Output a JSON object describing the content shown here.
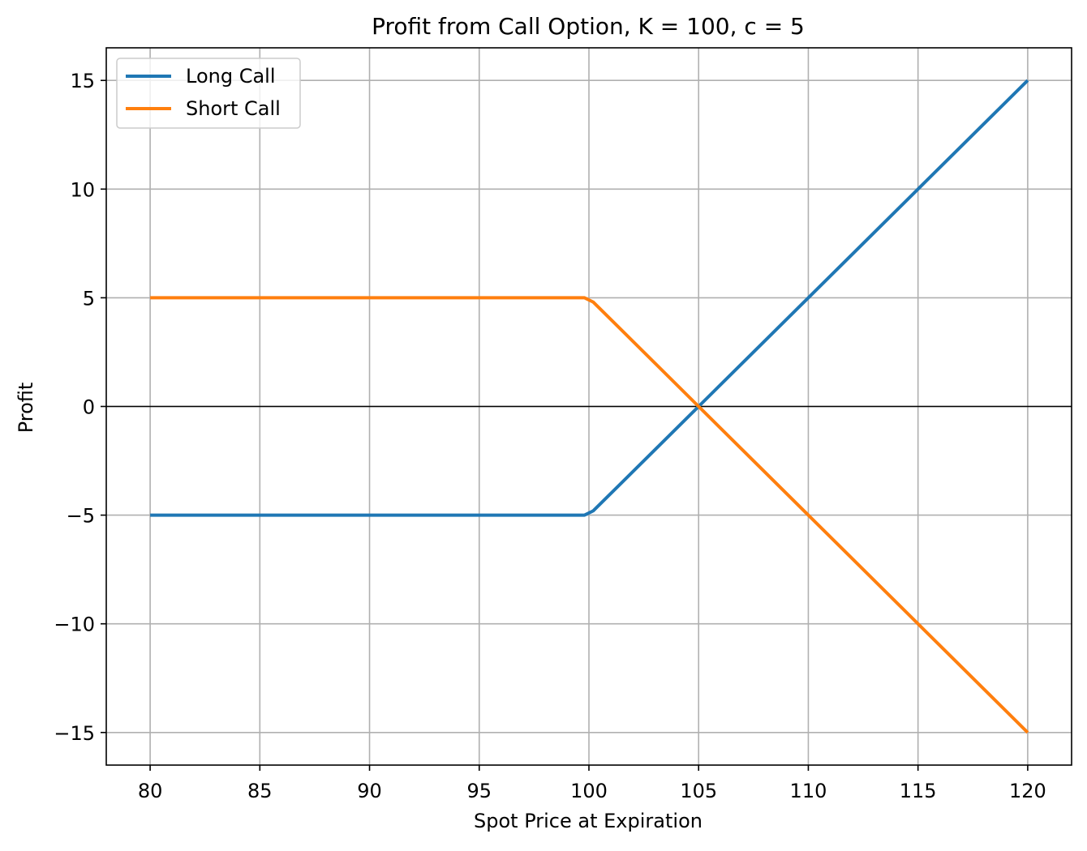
{
  "chart_data": {
    "type": "line",
    "title": "Profit from Call Option, K = 100, c = 5",
    "xlabel": "Spot Price at Expiration",
    "ylabel": "Profit",
    "xlim": [
      78,
      122
    ],
    "ylim": [
      -16.5,
      16.5
    ],
    "xticks": [
      80,
      85,
      90,
      95,
      100,
      105,
      110,
      115,
      120
    ],
    "yticks": [
      -15,
      -10,
      -5,
      0,
      5,
      10,
      15
    ],
    "xtick_labels": [
      "80",
      "85",
      "90",
      "95",
      "100",
      "105",
      "110",
      "115",
      "120"
    ],
    "ytick_labels": [
      "−15",
      "−10",
      "−5",
      "0",
      "5",
      "10",
      "15"
    ],
    "grid": true,
    "zero_line": 0,
    "legend_position": "top-left",
    "series": [
      {
        "name": "Long Call",
        "color": "#1f77b4",
        "x": [
          80,
          99.8,
          100.2,
          105,
          110,
          115,
          120
        ],
        "y": [
          -5,
          -5,
          -4.8,
          0,
          5,
          10,
          15
        ]
      },
      {
        "name": "Short Call",
        "color": "#ff7f0e",
        "x": [
          80,
          99.8,
          100.2,
          105,
          110,
          115,
          120
        ],
        "y": [
          5,
          5,
          4.8,
          0,
          -5,
          -10,
          -15
        ]
      }
    ]
  }
}
